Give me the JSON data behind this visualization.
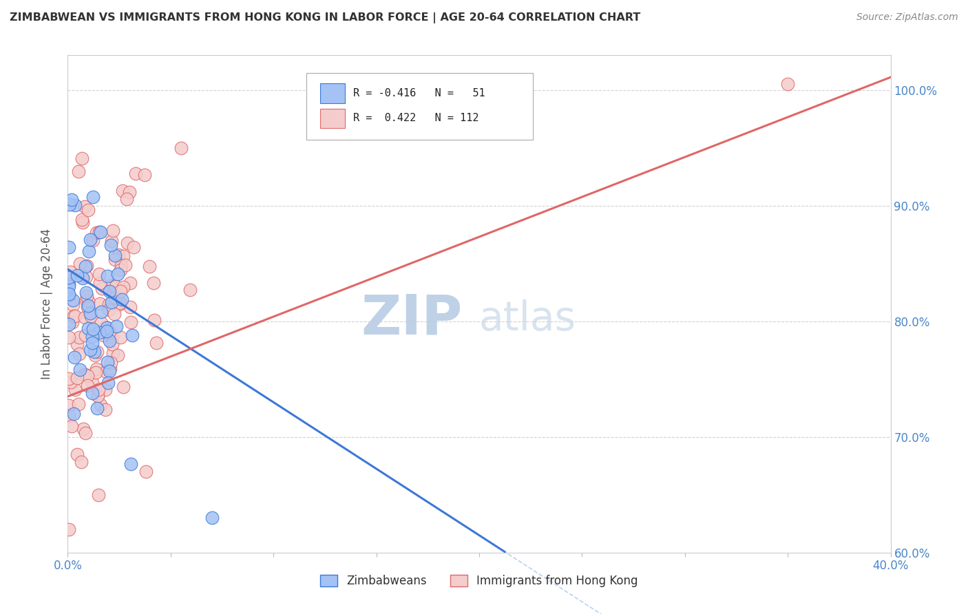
{
  "title": "ZIMBABWEAN VS IMMIGRANTS FROM HONG KONG IN LABOR FORCE | AGE 20-64 CORRELATION CHART",
  "source": "Source: ZipAtlas.com",
  "ylabel_label": "In Labor Force | Age 20-64",
  "xlim": [
    0.0,
    40.0
  ],
  "ylim": [
    60.0,
    103.0
  ],
  "yticks": [
    60.0,
    70.0,
    80.0,
    90.0,
    100.0
  ],
  "xticks": [
    0.0,
    5.0,
    10.0,
    15.0,
    20.0,
    25.0,
    30.0,
    35.0,
    40.0
  ],
  "blue_color": "#a4c2f4",
  "pink_color": "#f4cccc",
  "blue_edge_color": "#3c78d8",
  "pink_edge_color": "#e06666",
  "blue_line_color": "#3c78d8",
  "pink_line_color": "#e06666",
  "background_color": "#ffffff",
  "grid_color": "#c0c0c0",
  "title_color": "#333333",
  "axis_label_color": "#4a86c8",
  "watermark_color": "#d0dff0",
  "seed": 42,
  "zimbabwean_n": 51,
  "hongkong_n": 112,
  "zim_R": -0.416,
  "hk_R": 0.422,
  "zim_intercept": 84.5,
  "zim_slope": -1.15,
  "hk_intercept": 73.5,
  "hk_slope": 0.69
}
